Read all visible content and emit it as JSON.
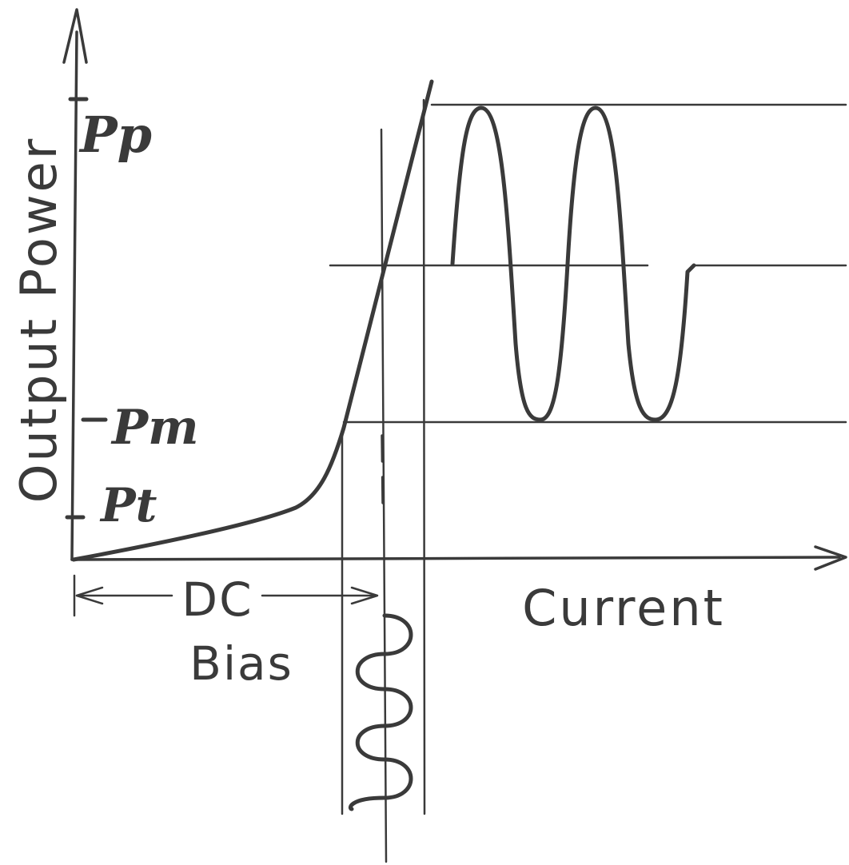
{
  "axes": {
    "y_label": "Output Power",
    "x_label": "Current"
  },
  "levels": {
    "peak_label": "Pp",
    "mid_label": "Pm",
    "threshold_label": "Pt"
  },
  "bias": {
    "line1": "DC",
    "line2": "Bias"
  },
  "colors": {
    "ink": "#3a3a3a",
    "background": "#ffffff"
  }
}
